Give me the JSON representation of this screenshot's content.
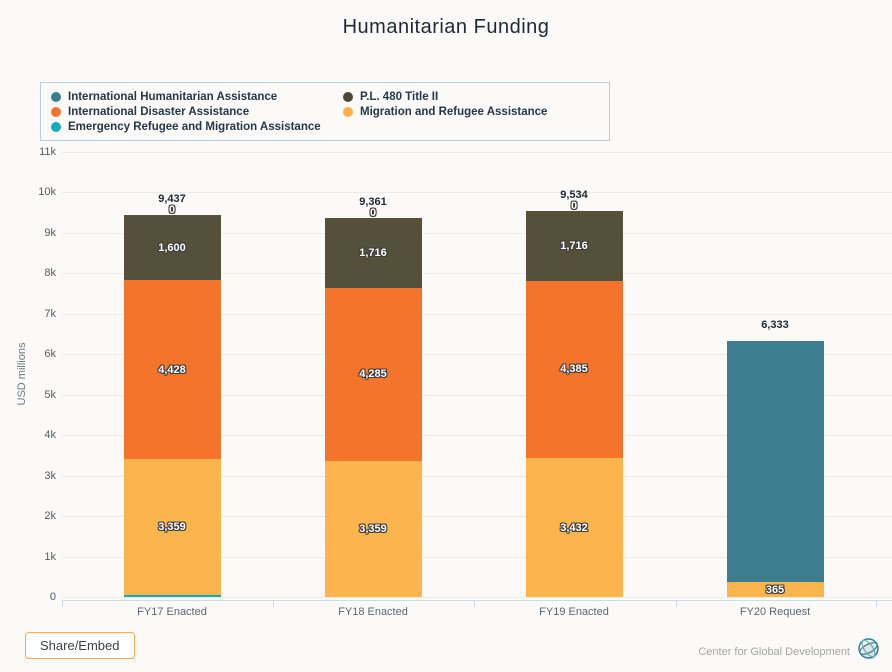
{
  "header": {
    "title": "Humanitarian Funding"
  },
  "legend": {
    "items": [
      {
        "label": "International Humanitarian Assistance",
        "color": "#3d7e8e"
      },
      {
        "label": "P.L. 480 Title II",
        "color": "#4d4738"
      },
      {
        "label": "International Disaster Assistance",
        "color": "#f5752e"
      },
      {
        "label": "Migration and Refugee Assistance",
        "color": "#fbb04a"
      },
      {
        "label": "Emergency Refugee and Migration Assistance",
        "color": "#15abb9"
      }
    ],
    "border_color": "#b9cfe0"
  },
  "chart_data": {
    "type": "bar",
    "stacked": true,
    "title": "Humanitarian Funding",
    "xlabel": "",
    "ylabel": "USD millions",
    "ylim": [
      0,
      11000
    ],
    "grid": true,
    "legend_position": "top",
    "ytick_labels": [
      "0",
      "1k",
      "2k",
      "3k",
      "4k",
      "5k",
      "6k",
      "7k",
      "8k",
      "9k",
      "10k",
      "11k"
    ],
    "categories": [
      "FY17 Enacted",
      "FY18 Enacted",
      "FY19 Enacted",
      "FY20 Request"
    ],
    "series": [
      {
        "name": "Emergency Refugee and Migration Assistance",
        "color": "#15abb9",
        "values": [
          50,
          1,
          1,
          0
        ],
        "labels": [
          "50",
          "",
          "",
          ""
        ]
      },
      {
        "name": "Migration and Refugee Assistance",
        "color": "#fbb54c",
        "values": [
          3359,
          3359,
          3432,
          365
        ],
        "labels": [
          "3,359",
          "3,359",
          "3,432",
          "365"
        ]
      },
      {
        "name": "International Disaster Assistance",
        "color": "#f4742c",
        "values": [
          4428,
          4285,
          4385,
          0
        ],
        "labels": [
          "4,428",
          "4,285",
          "4,385",
          ""
        ]
      },
      {
        "name": "P.L. 480 Title II",
        "color": "#55503a",
        "values": [
          1600,
          1716,
          1716,
          0
        ],
        "labels": [
          "1,600",
          "1,716",
          "1,716",
          ""
        ]
      },
      {
        "name": "International Humanitarian Assistance",
        "color": "#3d7e8e",
        "values": [
          0,
          0,
          0,
          5968
        ],
        "labels": [
          "0",
          "0",
          "0",
          ""
        ]
      }
    ],
    "totals": [
      "9,437",
      "9,361",
      "9,534",
      "6,333"
    ]
  },
  "footer": {
    "share_label": "Share/Embed",
    "credit": "Center for Global Development",
    "share_border_color": "#f9aa45"
  },
  "ui_colors": {
    "background": "#fbfaf8",
    "gridline": "#ebebe8",
    "axis_line": "#ccdaec",
    "title_text": "#1b2a3a"
  }
}
